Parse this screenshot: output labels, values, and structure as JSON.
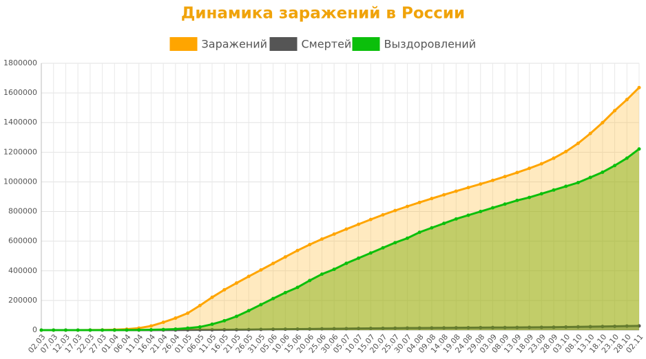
{
  "chart_data": {
    "type": "line",
    "title": "Динамика заражений в России",
    "categories": [
      "02.03",
      "07.03",
      "12.03",
      "17.03",
      "22.03",
      "27.03",
      "01.04",
      "06.04",
      "11.04",
      "16.04",
      "21.04",
      "26.04",
      "01.05",
      "06.05",
      "11.05",
      "16.05",
      "21.05",
      "26.05",
      "31.05",
      "05.06",
      "10.06",
      "15.06",
      "20.06",
      "25.06",
      "30.06",
      "05.07",
      "10.07",
      "15.07",
      "20.07",
      "25.07",
      "30.07",
      "04.08",
      "09.08",
      "14.08",
      "19.08",
      "24.08",
      "29.08",
      "03.09",
      "08.09",
      "13.09",
      "18.09",
      "23.09",
      "28.09",
      "03.10",
      "08.10",
      "13.10",
      "18.10",
      "23.10",
      "28.10",
      "02.11"
    ],
    "series": [
      {
        "name": "Заражений",
        "color": "#ffa500",
        "values": [
          3,
          13,
          28,
          114,
          367,
          1036,
          2777,
          6343,
          13584,
          27938,
          52763,
          80949,
          114431,
          165929,
          221344,
          272043,
          317554,
          362342,
          405843,
          449834,
          493657,
          537210,
          576952,
          613994,
          647849,
          681251,
          713936,
          746369,
          777486,
          806720,
          834499,
          861423,
          887536,
          912823,
          937321,
          961493,
          985346,
          1009995,
          1035789,
          1062811,
          1091186,
          1122241,
          1159573,
          1204502,
          1260112,
          1326178,
          1399334,
          1480646,
          1555000,
          1636000
        ]
      },
      {
        "name": "Смертей",
        "color": "#555555",
        "values": [
          0,
          0,
          0,
          0,
          1,
          3,
          24,
          47,
          106,
          232,
          456,
          747,
          1169,
          1537,
          2009,
          2537,
          3099,
          3633,
          4693,
          5528,
          6358,
          7091,
          7660,
          8554,
          9320,
          10027,
          11017,
          11614,
          12323,
          13026,
          13673,
          14207,
          14725,
          15231,
          15707,
          16189,
          16683,
          17128,
          17528,
          17989,
          18484,
          18917,
          19486,
          20981,
          21939,
          22966,
          24205,
          25525,
          27301,
          28235
        ]
      },
      {
        "name": "Выздоровлений",
        "color": "#0bbf0b",
        "values": [
          0,
          0,
          0,
          0,
          0,
          0,
          190,
          494,
          1045,
          2304,
          4000,
          6767,
          13220,
          21327,
          39801,
          63166,
          92681,
          131129,
          171883,
          212680,
          252783,
          288286,
          334592,
          377604,
          410235,
          450750,
          485433,
          520000,
          555000,
          590000,
          620000,
          660000,
          690000,
          720000,
          750000,
          775000,
          800000,
          825000,
          850000,
          875000,
          895000,
          920000,
          945000,
          970000,
          995000,
          1030000,
          1065000,
          1110000,
          1160000,
          1222000
        ]
      }
    ],
    "ylim": [
      0,
      1800000
    ],
    "yticks": [
      0,
      200000,
      400000,
      600000,
      800000,
      1000000,
      1200000,
      1400000,
      1600000,
      1800000
    ],
    "grid": true
  }
}
